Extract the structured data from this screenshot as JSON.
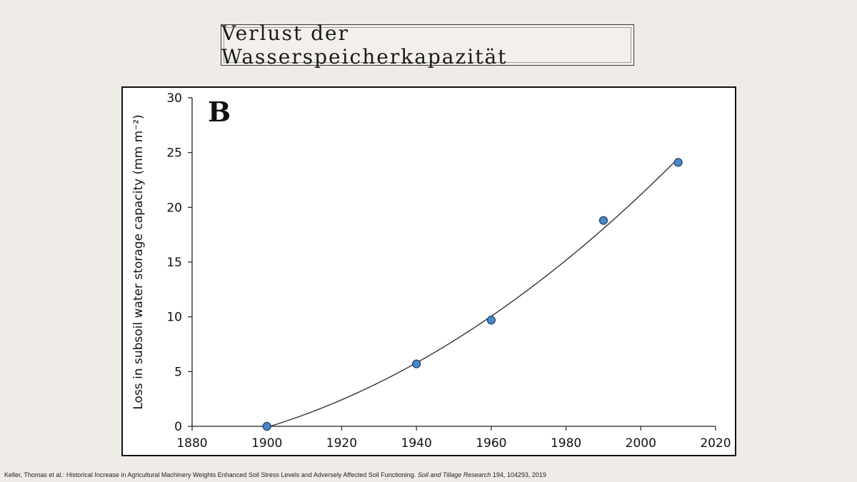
{
  "slide": {
    "title": "Verlust der Wasserspeicherkapazität"
  },
  "chart_data": {
    "type": "scatter",
    "panel_label": "B",
    "ylabel": "Loss in subsoil water storage capacity (mm m⁻²)",
    "xlabel": "",
    "xlim": [
      1880,
      2020
    ],
    "ylim": [
      0,
      30
    ],
    "xticks": [
      1880,
      1900,
      1920,
      1940,
      1960,
      1980,
      2000,
      2020
    ],
    "yticks": [
      0,
      5,
      10,
      15,
      20,
      25,
      30
    ],
    "series": [
      {
        "points": [
          {
            "x": 1900,
            "y": 0
          },
          {
            "x": 1940,
            "y": 5.7
          },
          {
            "x": 1960,
            "y": 9.7
          },
          {
            "x": 1990,
            "y": 18.8
          },
          {
            "x": 2010,
            "y": 24.1
          }
        ],
        "marker_color": "#4a86c8",
        "fit_line": true
      }
    ],
    "grid": false,
    "legend": "none"
  },
  "citation": {
    "prefix": "Keller, Thomas et al.: Historical Increase in Agricultural Machinery Weights Enhanced Soil Stress Levels and Adversely Affected Soil Functioning.",
    "journal": "Soil and Tillage Research",
    "suffix": "194, 104293, 2019"
  }
}
